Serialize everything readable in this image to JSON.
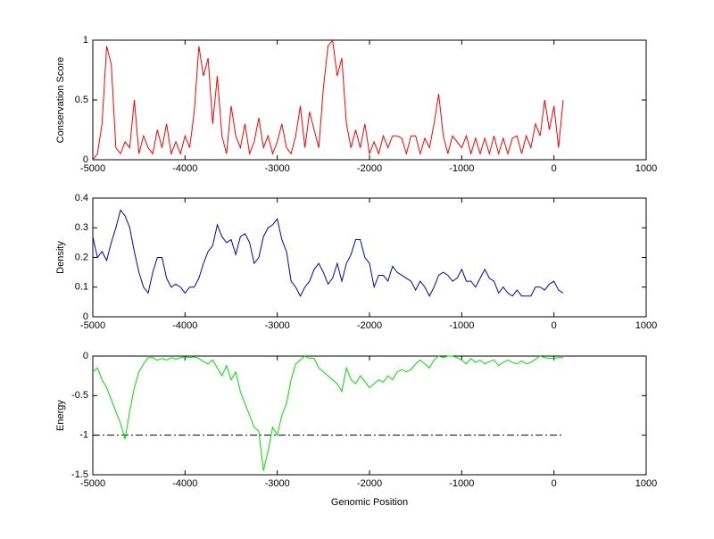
{
  "chart_data": [
    {
      "type": "line",
      "ylabel": "Conservation Score",
      "color": "#ff0000",
      "x": [
        -5000,
        -4950,
        -4900,
        -4850,
        -4800,
        -4750,
        -4700,
        -4650,
        -4600,
        -4550,
        -4500,
        -4450,
        -4400,
        -4350,
        -4300,
        -4250,
        -4200,
        -4150,
        -4100,
        -4050,
        -4000,
        -3950,
        -3900,
        -3850,
        -3800,
        -3750,
        -3700,
        -3650,
        -3600,
        -3550,
        -3500,
        -3450,
        -3400,
        -3350,
        -3300,
        -3250,
        -3200,
        -3150,
        -3100,
        -3050,
        -3000,
        -2950,
        -2900,
        -2850,
        -2800,
        -2750,
        -2700,
        -2650,
        -2600,
        -2550,
        -2500,
        -2450,
        -2400,
        -2350,
        -2300,
        -2250,
        -2200,
        -2150,
        -2100,
        -2050,
        -2000,
        -1950,
        -1900,
        -1850,
        -1800,
        -1750,
        -1700,
        -1650,
        -1600,
        -1550,
        -1500,
        -1450,
        -1400,
        -1350,
        -1300,
        -1250,
        -1200,
        -1150,
        -1100,
        -1050,
        -1000,
        -950,
        -900,
        -850,
        -800,
        -750,
        -700,
        -650,
        -600,
        -550,
        -500,
        -450,
        -400,
        -350,
        -300,
        -250,
        -200,
        -150,
        -100,
        -50,
        0,
        50,
        100
      ],
      "values": [
        0,
        0.05,
        0.3,
        0.95,
        0.8,
        0.1,
        0.05,
        0.15,
        0.1,
        0.5,
        0.05,
        0.2,
        0.1,
        0.05,
        0.25,
        0.1,
        0.3,
        0.05,
        0.15,
        0.05,
        0.2,
        0.1,
        0.4,
        0.95,
        0.7,
        0.85,
        0.3,
        0.7,
        0.2,
        0.05,
        0.45,
        0.2,
        0.1,
        0.3,
        0.05,
        0.15,
        0.35,
        0.1,
        0.2,
        0.05,
        0.15,
        0.3,
        0.1,
        0.05,
        0.2,
        0.45,
        0.1,
        0.4,
        0.25,
        0.1,
        0.6,
        0.95,
        1,
        0.7,
        0.85,
        0.3,
        0.1,
        0.25,
        0.1,
        0.3,
        0.05,
        0.15,
        0.05,
        0.2,
        0.1,
        0.2,
        0.2,
        0.18,
        0.05,
        0.2,
        0.2,
        0.05,
        0.18,
        0.1,
        0.3,
        0.55,
        0.2,
        0.05,
        0.2,
        0.15,
        0.1,
        0.2,
        0.05,
        0.18,
        0.05,
        0.18,
        0.05,
        0.2,
        0.05,
        0.18,
        0.05,
        0.18,
        0.2,
        0.05,
        0.2,
        0.1,
        0.3,
        0.2,
        0.5,
        0.25,
        0.45,
        0.1,
        0.5
      ],
      "xlim": [
        -5000,
        1000
      ],
      "xticks": [
        -5000,
        -4000,
        -3000,
        -2000,
        -1000,
        0,
        1000
      ],
      "ylim": [
        0,
        1
      ],
      "yticks": [
        0,
        0.5,
        1
      ]
    },
    {
      "type": "line",
      "ylabel": "Density",
      "color": "#0000c0",
      "x": [
        -5000,
        -4950,
        -4900,
        -4850,
        -4800,
        -4750,
        -4700,
        -4650,
        -4600,
        -4550,
        -4500,
        -4450,
        -4400,
        -4350,
        -4300,
        -4250,
        -4200,
        -4150,
        -4100,
        -4050,
        -4000,
        -3950,
        -3900,
        -3850,
        -3800,
        -3750,
        -3700,
        -3650,
        -3600,
        -3550,
        -3500,
        -3450,
        -3400,
        -3350,
        -3300,
        -3250,
        -3200,
        -3150,
        -3100,
        -3050,
        -3000,
        -2950,
        -2900,
        -2850,
        -2800,
        -2750,
        -2700,
        -2650,
        -2600,
        -2550,
        -2500,
        -2450,
        -2400,
        -2350,
        -2300,
        -2250,
        -2200,
        -2150,
        -2100,
        -2050,
        -2000,
        -1950,
        -1900,
        -1850,
        -1800,
        -1750,
        -1700,
        -1650,
        -1600,
        -1550,
        -1500,
        -1450,
        -1400,
        -1350,
        -1300,
        -1250,
        -1200,
        -1150,
        -1100,
        -1050,
        -1000,
        -950,
        -900,
        -850,
        -800,
        -750,
        -700,
        -650,
        -600,
        -550,
        -500,
        -450,
        -400,
        -350,
        -300,
        -250,
        -200,
        -150,
        -100,
        -50,
        0,
        50,
        100
      ],
      "values": [
        0.27,
        0.2,
        0.22,
        0.19,
        0.25,
        0.3,
        0.36,
        0.34,
        0.3,
        0.22,
        0.15,
        0.1,
        0.08,
        0.15,
        0.2,
        0.2,
        0.13,
        0.1,
        0.11,
        0.1,
        0.08,
        0.1,
        0.1,
        0.13,
        0.18,
        0.22,
        0.24,
        0.31,
        0.27,
        0.25,
        0.26,
        0.21,
        0.27,
        0.28,
        0.25,
        0.18,
        0.2,
        0.27,
        0.3,
        0.31,
        0.33,
        0.26,
        0.22,
        0.12,
        0.1,
        0.07,
        0.1,
        0.12,
        0.16,
        0.18,
        0.15,
        0.11,
        0.13,
        0.18,
        0.12,
        0.18,
        0.21,
        0.26,
        0.26,
        0.2,
        0.18,
        0.1,
        0.14,
        0.14,
        0.12,
        0.17,
        0.15,
        0.14,
        0.13,
        0.12,
        0.09,
        0.12,
        0.1,
        0.07,
        0.1,
        0.14,
        0.15,
        0.14,
        0.12,
        0.13,
        0.16,
        0.12,
        0.12,
        0.1,
        0.13,
        0.16,
        0.13,
        0.12,
        0.08,
        0.1,
        0.08,
        0.07,
        0.09,
        0.07,
        0.07,
        0.07,
        0.1,
        0.1,
        0.09,
        0.11,
        0.12,
        0.09,
        0.08
      ],
      "xlim": [
        -5000,
        1000
      ],
      "xticks": [
        -5000,
        -4000,
        -3000,
        -2000,
        -1000,
        0,
        1000
      ],
      "ylim": [
        0,
        0.4
      ],
      "yticks": [
        0,
        0.1,
        0.2,
        0.3,
        0.4
      ]
    },
    {
      "type": "line",
      "ylabel": "Energy",
      "xlabel": "Genomic Position",
      "color": "#00e000",
      "x": [
        -5000,
        -4950,
        -4900,
        -4850,
        -4800,
        -4750,
        -4700,
        -4650,
        -4600,
        -4550,
        -4500,
        -4450,
        -4400,
        -4350,
        -4300,
        -4250,
        -4200,
        -4150,
        -4100,
        -4050,
        -4000,
        -3950,
        -3900,
        -3850,
        -3800,
        -3750,
        -3700,
        -3650,
        -3600,
        -3550,
        -3500,
        -3450,
        -3400,
        -3350,
        -3300,
        -3250,
        -3200,
        -3150,
        -3100,
        -3050,
        -3000,
        -2950,
        -2900,
        -2850,
        -2800,
        -2750,
        -2700,
        -2650,
        -2600,
        -2550,
        -2500,
        -2450,
        -2400,
        -2350,
        -2300,
        -2250,
        -2200,
        -2150,
        -2100,
        -2050,
        -2000,
        -1950,
        -1900,
        -1850,
        -1800,
        -1750,
        -1700,
        -1650,
        -1600,
        -1550,
        -1500,
        -1450,
        -1400,
        -1350,
        -1300,
        -1250,
        -1200,
        -1150,
        -1100,
        -1050,
        -1000,
        -950,
        -900,
        -850,
        -800,
        -750,
        -700,
        -650,
        -600,
        -550,
        -500,
        -450,
        -400,
        -350,
        -300,
        -250,
        -200,
        -150,
        -100,
        -50,
        0,
        50,
        100
      ],
      "values": [
        -0.2,
        -0.15,
        -0.3,
        -0.4,
        -0.55,
        -0.7,
        -0.85,
        -1.05,
        -0.7,
        -0.4,
        -0.2,
        -0.1,
        -0.02,
        -0.02,
        -0.05,
        -0.03,
        -0.05,
        -0.02,
        -0.04,
        -0.02,
        -0.01,
        -0.02,
        -0.01,
        -0.03,
        -0.07,
        -0.1,
        -0.05,
        -0.15,
        -0.25,
        -0.12,
        -0.3,
        -0.2,
        -0.45,
        -0.6,
        -0.75,
        -0.9,
        -0.95,
        -1.45,
        -1.2,
        -0.9,
        -1,
        -0.75,
        -0.6,
        -0.3,
        -0.1,
        -0.05,
        0,
        -0.03,
        -0.03,
        -0.15,
        -0.2,
        -0.25,
        -0.3,
        -0.35,
        -0.45,
        -0.15,
        -0.3,
        -0.35,
        -0.25,
        -0.32,
        -0.4,
        -0.35,
        -0.3,
        -0.33,
        -0.25,
        -0.3,
        -0.2,
        -0.17,
        -0.2,
        -0.17,
        -0.1,
        -0.05,
        -0.1,
        -0.15,
        -0.05,
        0,
        -0.02,
        0,
        0,
        -0.02,
        -0.05,
        -0.1,
        -0.03,
        -0.08,
        -0.05,
        -0.1,
        -0.07,
        -0.05,
        -0.12,
        -0.08,
        -0.05,
        -0.08,
        -0.1,
        -0.06,
        -0.1,
        -0.08,
        -0.04,
        0,
        -0.02,
        -0.03,
        -0.03,
        -0.02,
        -0.02
      ],
      "reference_line": {
        "value": -1,
        "x": [
          -5000,
          100
        ],
        "color": "#000000"
      },
      "xlim": [
        -5000,
        1000
      ],
      "xticks": [
        -5000,
        -4000,
        -3000,
        -2000,
        -1000,
        0,
        1000
      ],
      "ylim": [
        -1.5,
        0
      ],
      "yticks": [
        -1.5,
        -1,
        -0.5,
        0
      ]
    }
  ]
}
